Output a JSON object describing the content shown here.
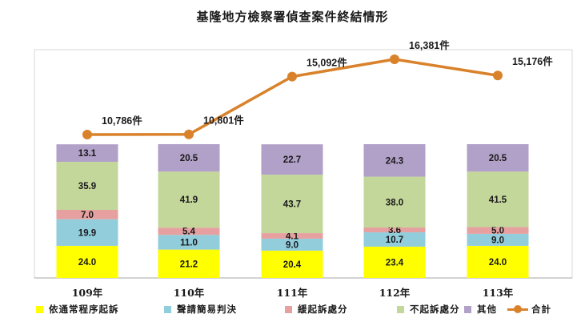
{
  "chart_data": {
    "type": "bar",
    "stacked": true,
    "title": "基隆地方檢察署偵查案件終結情形",
    "categories": [
      "109年",
      "110年",
      "111年",
      "112年",
      "113年"
    ],
    "series": [
      {
        "name": "依通常程序起訴",
        "color": "#ffff00",
        "values": [
          24.0,
          21.2,
          20.4,
          23.4,
          24.0
        ]
      },
      {
        "name": "聲請簡易判決",
        "color": "#92cddc",
        "values": [
          19.9,
          11.0,
          9.0,
          10.7,
          9.0
        ]
      },
      {
        "name": "緩起訴處分",
        "color": "#e6a0a0",
        "values": [
          7.0,
          5.4,
          4.1,
          3.6,
          5.0
        ]
      },
      {
        "name": "不起訴處分",
        "color": "#c4d79b",
        "values": [
          35.9,
          41.9,
          43.7,
          38.0,
          41.5
        ]
      },
      {
        "name": "其他",
        "color": "#b1a0c7",
        "values": [
          13.1,
          20.5,
          22.7,
          24.3,
          20.5
        ]
      }
    ],
    "line_series": {
      "name": "合計",
      "color": "#d9822b",
      "values": [
        10786,
        10801,
        15092,
        16381,
        15176
      ],
      "labels": [
        "10,786件",
        "10,801件",
        "15,092件",
        "16,381件",
        "15,176件"
      ]
    },
    "legend_position": "bottom",
    "grid": false
  }
}
